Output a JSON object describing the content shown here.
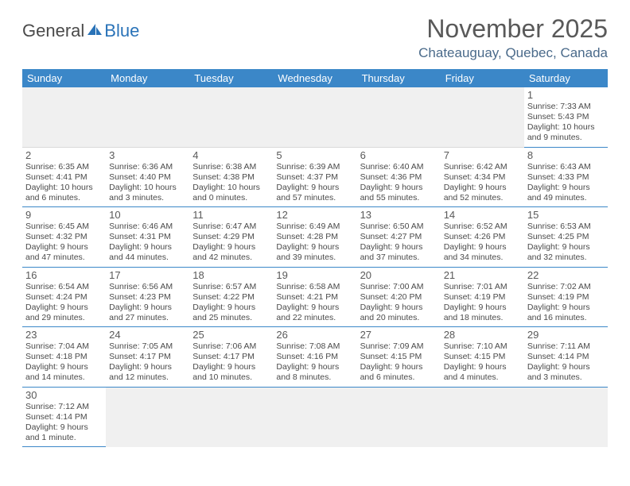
{
  "logo": {
    "text1": "General",
    "text2": "Blue"
  },
  "title": "November 2025",
  "location": "Chateauguay, Quebec, Canada",
  "colors": {
    "header_bg": "#3b87c8",
    "header_fg": "#ffffff",
    "rule": "#3b87c8",
    "blank_bg": "#f0f0f0",
    "text": "#4a4a4a",
    "title": "#595959",
    "location": "#4a6a8a"
  },
  "day_headers": [
    "Sunday",
    "Monday",
    "Tuesday",
    "Wednesday",
    "Thursday",
    "Friday",
    "Saturday"
  ],
  "weeks": [
    [
      null,
      null,
      null,
      null,
      null,
      null,
      {
        "n": "1",
        "sr": "Sunrise: 7:33 AM",
        "ss": "Sunset: 5:43 PM",
        "d1": "Daylight: 10 hours",
        "d2": "and 9 minutes."
      }
    ],
    [
      {
        "n": "2",
        "sr": "Sunrise: 6:35 AM",
        "ss": "Sunset: 4:41 PM",
        "d1": "Daylight: 10 hours",
        "d2": "and 6 minutes."
      },
      {
        "n": "3",
        "sr": "Sunrise: 6:36 AM",
        "ss": "Sunset: 4:40 PM",
        "d1": "Daylight: 10 hours",
        "d2": "and 3 minutes."
      },
      {
        "n": "4",
        "sr": "Sunrise: 6:38 AM",
        "ss": "Sunset: 4:38 PM",
        "d1": "Daylight: 10 hours",
        "d2": "and 0 minutes."
      },
      {
        "n": "5",
        "sr": "Sunrise: 6:39 AM",
        "ss": "Sunset: 4:37 PM",
        "d1": "Daylight: 9 hours",
        "d2": "and 57 minutes."
      },
      {
        "n": "6",
        "sr": "Sunrise: 6:40 AM",
        "ss": "Sunset: 4:36 PM",
        "d1": "Daylight: 9 hours",
        "d2": "and 55 minutes."
      },
      {
        "n": "7",
        "sr": "Sunrise: 6:42 AM",
        "ss": "Sunset: 4:34 PM",
        "d1": "Daylight: 9 hours",
        "d2": "and 52 minutes."
      },
      {
        "n": "8",
        "sr": "Sunrise: 6:43 AM",
        "ss": "Sunset: 4:33 PM",
        "d1": "Daylight: 9 hours",
        "d2": "and 49 minutes."
      }
    ],
    [
      {
        "n": "9",
        "sr": "Sunrise: 6:45 AM",
        "ss": "Sunset: 4:32 PM",
        "d1": "Daylight: 9 hours",
        "d2": "and 47 minutes."
      },
      {
        "n": "10",
        "sr": "Sunrise: 6:46 AM",
        "ss": "Sunset: 4:31 PM",
        "d1": "Daylight: 9 hours",
        "d2": "and 44 minutes."
      },
      {
        "n": "11",
        "sr": "Sunrise: 6:47 AM",
        "ss": "Sunset: 4:29 PM",
        "d1": "Daylight: 9 hours",
        "d2": "and 42 minutes."
      },
      {
        "n": "12",
        "sr": "Sunrise: 6:49 AM",
        "ss": "Sunset: 4:28 PM",
        "d1": "Daylight: 9 hours",
        "d2": "and 39 minutes."
      },
      {
        "n": "13",
        "sr": "Sunrise: 6:50 AM",
        "ss": "Sunset: 4:27 PM",
        "d1": "Daylight: 9 hours",
        "d2": "and 37 minutes."
      },
      {
        "n": "14",
        "sr": "Sunrise: 6:52 AM",
        "ss": "Sunset: 4:26 PM",
        "d1": "Daylight: 9 hours",
        "d2": "and 34 minutes."
      },
      {
        "n": "15",
        "sr": "Sunrise: 6:53 AM",
        "ss": "Sunset: 4:25 PM",
        "d1": "Daylight: 9 hours",
        "d2": "and 32 minutes."
      }
    ],
    [
      {
        "n": "16",
        "sr": "Sunrise: 6:54 AM",
        "ss": "Sunset: 4:24 PM",
        "d1": "Daylight: 9 hours",
        "d2": "and 29 minutes."
      },
      {
        "n": "17",
        "sr": "Sunrise: 6:56 AM",
        "ss": "Sunset: 4:23 PM",
        "d1": "Daylight: 9 hours",
        "d2": "and 27 minutes."
      },
      {
        "n": "18",
        "sr": "Sunrise: 6:57 AM",
        "ss": "Sunset: 4:22 PM",
        "d1": "Daylight: 9 hours",
        "d2": "and 25 minutes."
      },
      {
        "n": "19",
        "sr": "Sunrise: 6:58 AM",
        "ss": "Sunset: 4:21 PM",
        "d1": "Daylight: 9 hours",
        "d2": "and 22 minutes."
      },
      {
        "n": "20",
        "sr": "Sunrise: 7:00 AM",
        "ss": "Sunset: 4:20 PM",
        "d1": "Daylight: 9 hours",
        "d2": "and 20 minutes."
      },
      {
        "n": "21",
        "sr": "Sunrise: 7:01 AM",
        "ss": "Sunset: 4:19 PM",
        "d1": "Daylight: 9 hours",
        "d2": "and 18 minutes."
      },
      {
        "n": "22",
        "sr": "Sunrise: 7:02 AM",
        "ss": "Sunset: 4:19 PM",
        "d1": "Daylight: 9 hours",
        "d2": "and 16 minutes."
      }
    ],
    [
      {
        "n": "23",
        "sr": "Sunrise: 7:04 AM",
        "ss": "Sunset: 4:18 PM",
        "d1": "Daylight: 9 hours",
        "d2": "and 14 minutes."
      },
      {
        "n": "24",
        "sr": "Sunrise: 7:05 AM",
        "ss": "Sunset: 4:17 PM",
        "d1": "Daylight: 9 hours",
        "d2": "and 12 minutes."
      },
      {
        "n": "25",
        "sr": "Sunrise: 7:06 AM",
        "ss": "Sunset: 4:17 PM",
        "d1": "Daylight: 9 hours",
        "d2": "and 10 minutes."
      },
      {
        "n": "26",
        "sr": "Sunrise: 7:08 AM",
        "ss": "Sunset: 4:16 PM",
        "d1": "Daylight: 9 hours",
        "d2": "and 8 minutes."
      },
      {
        "n": "27",
        "sr": "Sunrise: 7:09 AM",
        "ss": "Sunset: 4:15 PM",
        "d1": "Daylight: 9 hours",
        "d2": "and 6 minutes."
      },
      {
        "n": "28",
        "sr": "Sunrise: 7:10 AM",
        "ss": "Sunset: 4:15 PM",
        "d1": "Daylight: 9 hours",
        "d2": "and 4 minutes."
      },
      {
        "n": "29",
        "sr": "Sunrise: 7:11 AM",
        "ss": "Sunset: 4:14 PM",
        "d1": "Daylight: 9 hours",
        "d2": "and 3 minutes."
      }
    ],
    [
      {
        "n": "30",
        "sr": "Sunrise: 7:12 AM",
        "ss": "Sunset: 4:14 PM",
        "d1": "Daylight: 9 hours",
        "d2": "and 1 minute."
      },
      null,
      null,
      null,
      null,
      null,
      null
    ]
  ]
}
